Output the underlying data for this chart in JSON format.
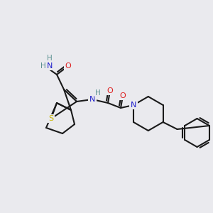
{
  "bg_color": "#eaeaee",
  "bond_color": "#1a1a1a",
  "atom_colors": {
    "N": "#2020cc",
    "O": "#dd2020",
    "S": "#c8b400",
    "H": "#5a9090",
    "C": "#1a1a1a"
  },
  "figsize": [
    3.0,
    3.0
  ],
  "dpi": 100
}
